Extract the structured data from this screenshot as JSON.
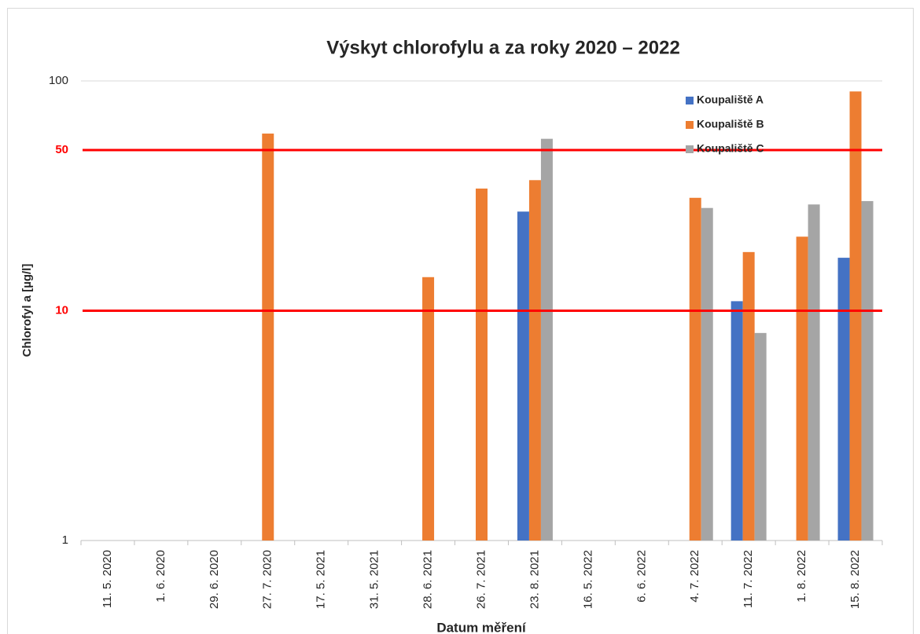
{
  "chart_data": {
    "type": "bar",
    "title": "Výskyt chlorofylu a za roky 2020 – 2022",
    "x_label": "Datum měření",
    "y_label": "Chlorofyl a [µg/l]",
    "categories": [
      "11. 5. 2020",
      "1. 6. 2020",
      "29. 6. 2020",
      "27. 7. 2020",
      "17. 5. 2021",
      "31. 5. 2021",
      "28. 6. 2021",
      "26. 7. 2021",
      "23. 8. 2021",
      "16. 5. 2022",
      "6. 6. 2022",
      "4. 7. 2022",
      "11. 7. 2022",
      "1. 8. 2022",
      "15. 8. 2022"
    ],
    "series": [
      {
        "name": "Koupaliště A",
        "color": "#4472c4",
        "values": [
          null,
          null,
          null,
          null,
          null,
          null,
          null,
          null,
          27,
          null,
          null,
          null,
          11,
          null,
          17
        ]
      },
      {
        "name": "Koupaliště B",
        "color": "#ed7d31",
        "values": [
          null,
          null,
          null,
          59,
          null,
          null,
          14,
          34,
          37,
          null,
          null,
          31,
          18,
          21,
          90
        ]
      },
      {
        "name": "Koupaliště C",
        "color": "#a5a5a5",
        "values": [
          null,
          null,
          null,
          null,
          null,
          null,
          null,
          null,
          56,
          null,
          null,
          28,
          8,
          29,
          30
        ]
      }
    ],
    "ylim": [
      1,
      100
    ],
    "yticks": [
      1,
      10,
      50,
      100
    ],
    "log_scale": true,
    "grid": true,
    "reference_lines": [
      {
        "value": 50,
        "color": "#ff0000"
      },
      {
        "value": 10,
        "color": "#ff0000"
      }
    ],
    "legend": "top-right"
  }
}
